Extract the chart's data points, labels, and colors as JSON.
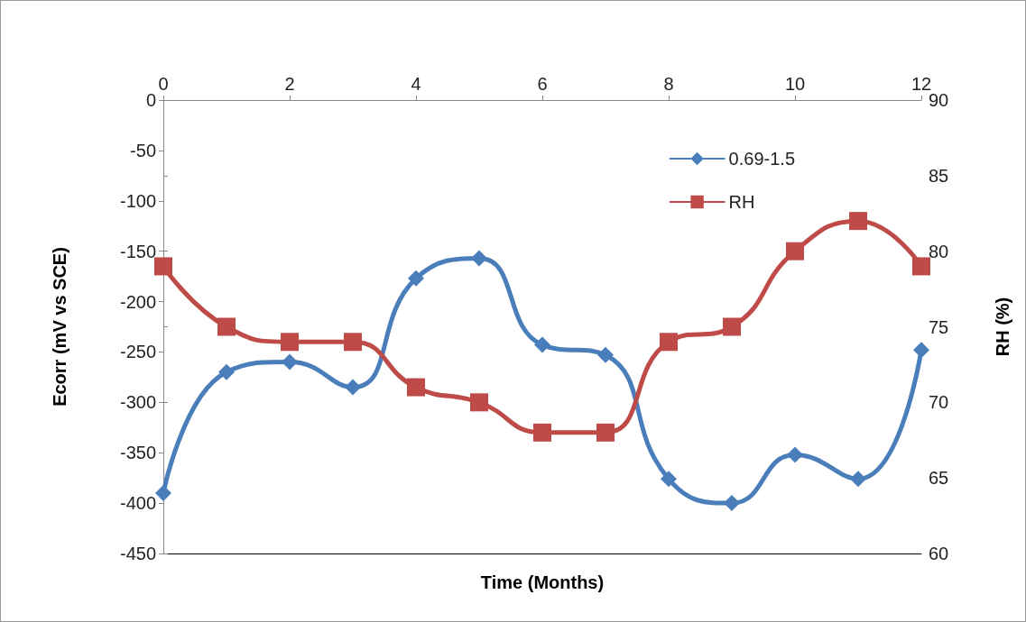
{
  "chart_data": {
    "type": "line",
    "xlabel": "Time (Months)",
    "ylabel": "Ecorr (mV vs SCE)",
    "y2label": "RH (%)",
    "x": [
      0,
      1,
      2,
      3,
      4,
      5,
      6,
      7,
      8,
      9,
      10,
      11,
      12
    ],
    "series": [
      {
        "name": "0.69-1.5",
        "color": "#4a7ebb",
        "marker": "diamond",
        "values": [
          -390,
          -270,
          -260,
          -285,
          -177,
          -157,
          -243,
          -253,
          -376,
          -400,
          -352,
          -376,
          -248
        ]
      },
      {
        "name": "RH",
        "color": "#be4b48",
        "marker": "square",
        "axis": "y2",
        "values": [
          79,
          75,
          74,
          74,
          71,
          70,
          68,
          68,
          74,
          75,
          80,
          82,
          79
        ]
      }
    ],
    "xlim": [
      0,
      12
    ],
    "xticks": [
      0,
      2,
      4,
      6,
      8,
      10,
      12
    ],
    "ylim": [
      -450,
      0
    ],
    "yticks": [
      -450,
      -400,
      -350,
      -300,
      -250,
      -200,
      -150,
      -100,
      -50,
      0
    ],
    "y2lim": [
      60,
      90
    ],
    "y2ticks": [
      60,
      65,
      70,
      75,
      80,
      85,
      90
    ],
    "grid": false,
    "legend": "top right",
    "line_style": "solid"
  }
}
